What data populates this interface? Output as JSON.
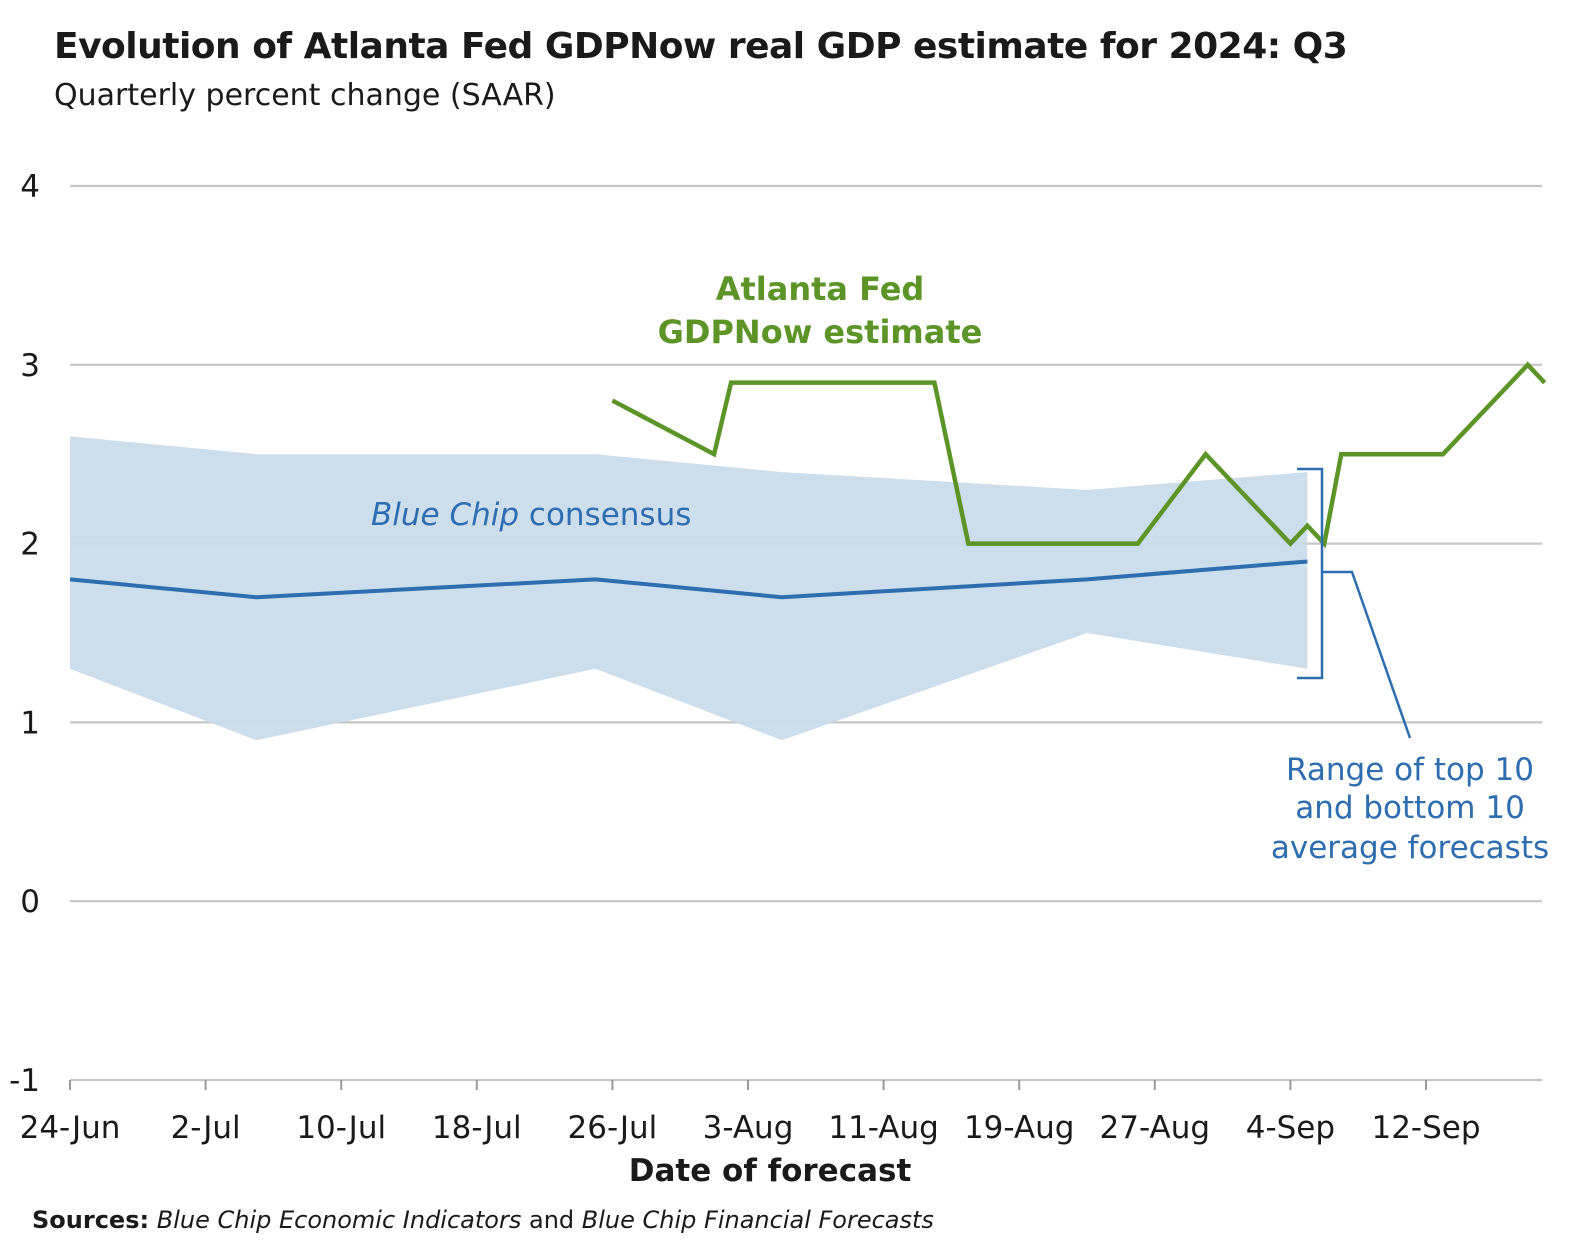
{
  "title": "Evolution of Atlanta Fed GDPNow real GDP estimate for 2024: Q3",
  "subtitle": "Quarterly percent change (SAAR)",
  "sources": {
    "label": "Sources:",
    "source1": "Blue Chip Economic Indicators",
    "conj": "and",
    "source2": "Blue Chip Financial Forecasts"
  },
  "colors": {
    "gdpnow": "#5d9427",
    "consensus": "#2e6db0",
    "range_fill": "#c9dbea",
    "grid": "#c6c6c6"
  },
  "chart_data": {
    "type": "line",
    "xlabel": "Date of forecast",
    "ylabel": "",
    "ylim": [
      -1,
      4
    ],
    "yticks": [
      -1,
      0,
      1,
      2,
      3,
      4
    ],
    "xlim": [
      "2024-06-24",
      "2024-09-22"
    ],
    "xticks": [
      {
        "date": "2024-06-24",
        "label": "24-Jun"
      },
      {
        "date": "2024-07-02",
        "label": "2-Jul"
      },
      {
        "date": "2024-07-10",
        "label": "10-Jul"
      },
      {
        "date": "2024-07-18",
        "label": "18-Jul"
      },
      {
        "date": "2024-07-26",
        "label": "26-Jul"
      },
      {
        "date": "2024-08-03",
        "label": "3-Aug"
      },
      {
        "date": "2024-08-11",
        "label": "11-Aug"
      },
      {
        "date": "2024-08-19",
        "label": "19-Aug"
      },
      {
        "date": "2024-08-27",
        "label": "27-Aug"
      },
      {
        "date": "2024-09-04",
        "label": "4-Sep"
      },
      {
        "date": "2024-09-12",
        "label": "12-Sep"
      }
    ],
    "grid": true,
    "series": [
      {
        "name": "Atlanta Fed GDPNow estimate",
        "kind": "line",
        "color": "#5d9427",
        "points": [
          [
            "2024-07-26",
            2.8
          ],
          [
            "2024-08-01",
            2.5
          ],
          [
            "2024-08-02",
            2.9
          ],
          [
            "2024-08-08",
            2.9
          ],
          [
            "2024-08-14",
            2.9
          ],
          [
            "2024-08-16",
            2.0
          ],
          [
            "2024-08-26",
            2.0
          ],
          [
            "2024-08-30",
            2.5
          ],
          [
            "2024-09-04",
            2.0
          ],
          [
            "2024-09-05",
            2.1
          ],
          [
            "2024-09-06",
            2.0
          ],
          [
            "2024-09-07",
            2.5
          ],
          [
            "2024-09-13",
            2.5
          ],
          [
            "2024-09-18",
            3.0
          ],
          [
            "2024-09-19",
            2.9
          ]
        ]
      },
      {
        "name": "Blue Chip consensus",
        "kind": "line",
        "color": "#2e6db0",
        "points": [
          [
            "2024-06-24",
            1.8
          ],
          [
            "2024-07-05",
            1.7
          ],
          [
            "2024-07-25",
            1.8
          ],
          [
            "2024-08-05",
            1.7
          ],
          [
            "2024-08-23",
            1.8
          ],
          [
            "2024-09-05",
            1.9
          ]
        ]
      },
      {
        "name": "Range of top 10 and bottom 10 average forecasts",
        "kind": "band",
        "color": "#c9dbea",
        "points": [
          [
            "2024-06-24",
            1.3,
            2.6
          ],
          [
            "2024-07-05",
            0.9,
            2.5
          ],
          [
            "2024-07-25",
            1.3,
            2.5
          ],
          [
            "2024-08-05",
            0.9,
            2.4
          ],
          [
            "2024-08-23",
            1.5,
            2.3
          ],
          [
            "2024-09-05",
            1.3,
            2.4
          ]
        ]
      }
    ],
    "annotations": {
      "gdpnow_line1": "Atlanta Fed",
      "gdpnow_line2": "GDPNow estimate",
      "consensus_italic": "Blue Chip",
      "consensus_rest": " consensus",
      "range_line1": "Range of top 10",
      "range_line2": "and bottom 10",
      "range_line3": "average forecasts"
    }
  }
}
